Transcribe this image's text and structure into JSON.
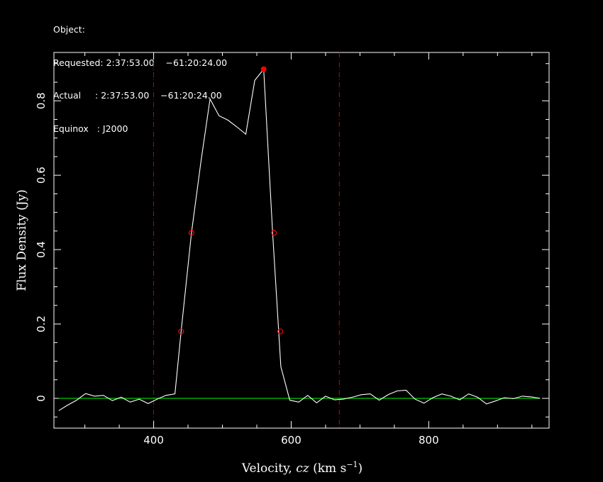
{
  "header": {
    "object": "Object:",
    "requested": "Requested: 2:37:53.00    −61:20:24.00",
    "actual": "Actual     : 2:37:53.00    −61:20:24.00",
    "equinox": "Equinox   : J2000"
  },
  "colors": {
    "background": "#000000",
    "frame": "#ffffff",
    "spectrum": "#ffffff",
    "baseline": "#00cc00",
    "markers": "#ff0000",
    "window_lines": "#cc0000"
  },
  "chart_data": {
    "type": "line",
    "xlabel_prefix": "Velocity, ",
    "xlabel_var": "cz",
    "xlabel_unit": " (km s",
    "xlabel_exp": "−1",
    "xlabel_close": ")",
    "ylabel": "Flux Density (Jy)",
    "xlim": [
      255,
      975
    ],
    "ylim": [
      -0.08,
      0.93
    ],
    "x_ticks": [
      400,
      600,
      800
    ],
    "x_tick_labels": [
      "400",
      "600",
      "800"
    ],
    "y_ticks": [
      0,
      0.2,
      0.4,
      0.6,
      0.8
    ],
    "y_tick_labels": [
      "0",
      "0.2",
      "0.4",
      "0.6",
      "0.8"
    ],
    "series": [
      {
        "x": [
          262,
          275,
          288,
          301,
          314,
          327,
          340,
          353,
          366,
          379,
          392,
          405,
          418,
          431,
          440,
          455,
          469,
          482,
          495,
          508,
          521,
          534,
          547,
          560,
          573,
          585,
          598,
          611,
          624,
          637,
          650,
          663,
          676,
          689,
          702,
          715,
          728,
          741,
          754,
          767,
          780,
          793,
          806,
          819,
          832,
          845,
          858,
          871,
          884,
          897,
          910,
          923,
          936,
          949,
          962
        ],
        "y": [
          -0.033,
          -0.018,
          -0.005,
          0.013,
          0.006,
          0.008,
          -0.006,
          0.003,
          -0.01,
          -0.002,
          -0.014,
          -0.002,
          0.008,
          0.012,
          0.18,
          0.445,
          0.64,
          0.805,
          0.76,
          0.748,
          0.73,
          0.71,
          0.855,
          0.885,
          0.445,
          0.085,
          -0.005,
          -0.01,
          0.008,
          -0.012,
          0.006,
          -0.004,
          -0.002,
          0.003,
          0.01,
          0.012,
          -0.005,
          0.01,
          0.02,
          0.022,
          -0.002,
          -0.013,
          0.002,
          0.012,
          0.006,
          -0.004,
          0.012,
          0.003,
          -0.015,
          -0.007,
          0.002,
          -0.001,
          0.006,
          0.004,
          0.0
        ]
      }
    ],
    "baseline": 0.0,
    "window_lines_x": [
      400,
      670
    ],
    "peak_marker": {
      "x": 560,
      "y": 0.885
    },
    "width_markers": [
      {
        "x": 440,
        "y": 0.18
      },
      {
        "x": 455,
        "y": 0.445
      },
      {
        "x": 575,
        "y": 0.445
      },
      {
        "x": 584,
        "y": 0.18
      }
    ]
  }
}
